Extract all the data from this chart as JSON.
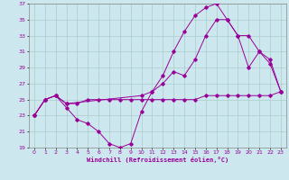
{
  "xlabel": "Windchill (Refroidissement éolien,°C)",
  "bg_color": "#cce8ee",
  "line_color": "#990099",
  "grid_color": "#aacccc",
  "xlim": [
    -0.5,
    23.5
  ],
  "ylim": [
    19,
    37
  ],
  "yticks": [
    19,
    21,
    23,
    25,
    27,
    29,
    31,
    33,
    35,
    37
  ],
  "xticks": [
    0,
    1,
    2,
    3,
    4,
    5,
    6,
    7,
    8,
    9,
    10,
    11,
    12,
    13,
    14,
    15,
    16,
    17,
    18,
    19,
    20,
    21,
    22,
    23
  ],
  "line1_x": [
    0,
    1,
    2,
    3,
    4,
    5,
    6,
    7,
    8,
    9,
    10,
    11,
    12,
    13,
    14,
    15,
    16,
    17,
    18,
    19,
    20,
    21,
    22,
    23
  ],
  "line1_y": [
    23,
    25,
    25.5,
    24.5,
    24.5,
    25,
    25,
    25,
    25,
    25,
    25,
    25,
    25,
    25,
    25,
    25,
    25.5,
    25.5,
    25.5,
    25.5,
    25.5,
    25.5,
    25.5,
    26
  ],
  "line2_x": [
    0,
    1,
    2,
    3,
    4,
    5,
    6,
    7,
    8,
    9,
    10,
    11,
    12,
    13,
    14,
    15,
    16,
    17,
    18,
    19,
    20,
    21,
    22,
    23
  ],
  "line2_y": [
    23,
    25,
    25.5,
    24,
    22.5,
    22,
    21,
    19.5,
    19,
    19.5,
    23.5,
    26,
    28,
    31,
    33.5,
    35.5,
    36.5,
    37,
    35,
    33,
    29,
    31,
    30,
    26
  ],
  "line3_x": [
    0,
    1,
    2,
    3,
    10,
    11,
    12,
    13,
    14,
    15,
    16,
    17,
    18,
    19,
    20,
    21,
    22,
    23
  ],
  "line3_y": [
    23,
    25,
    25.5,
    24.5,
    25.5,
    26,
    27,
    28.5,
    28,
    30,
    33,
    35,
    35,
    33,
    33,
    31,
    29.5,
    26
  ]
}
